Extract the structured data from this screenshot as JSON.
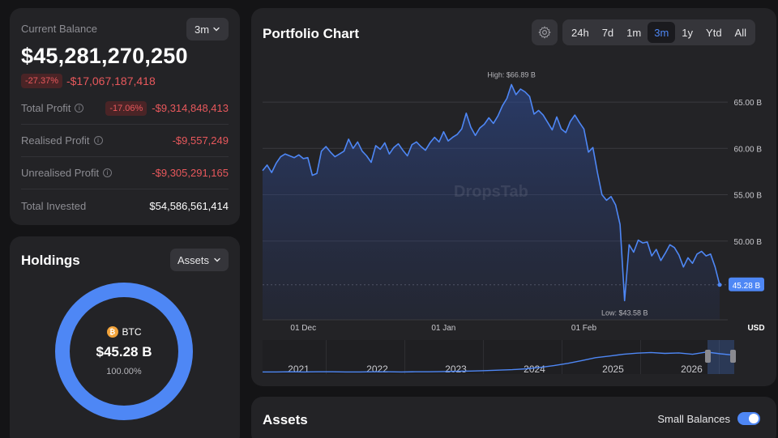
{
  "balance": {
    "label": "Current Balance",
    "period": "3m",
    "value": "$45,281,270,250",
    "change_pct": "-27.37%",
    "change_abs": "-$17,067,187,418",
    "rows": [
      {
        "label": "Total Profit",
        "badge": "-17.06%",
        "value": "-$9,314,848,413"
      },
      {
        "label": "Realised Profit",
        "value": "-$9,557,249"
      },
      {
        "label": "Unrealised Profit",
        "value": "-$9,305,291,165"
      },
      {
        "label": "Total Invested",
        "value": "$54,586,561,414"
      }
    ]
  },
  "holdings": {
    "title": "Holdings",
    "filter": "Assets",
    "coin": "BTC",
    "value": "$45.28 B",
    "share": "100.00%",
    "share_fraction": 1.0,
    "ring_color": "#4e87f5"
  },
  "chart": {
    "title": "Portfolio Chart",
    "ranges": [
      "24h",
      "7d",
      "1m",
      "3m",
      "1y",
      "Ytd",
      "All"
    ],
    "active_range": "3m",
    "watermark": "DropsTab",
    "high_label": "High: $66.89 B",
    "low_label": "Low: $43.58 B",
    "current_label": "45.28 B",
    "currency": "USD",
    "accent": "#4e87f5"
  },
  "chart_data": {
    "type": "area",
    "y_unit": "B USD",
    "y_ticks": [
      65,
      60,
      55,
      50
    ],
    "ytick_labels": [
      "65.00 B",
      "60.00 B",
      "55.00 B",
      "50.00 B"
    ],
    "ylim": [
      45.0,
      68.5
    ],
    "x_ticks": [
      "01 Dec",
      "01 Jan",
      "01 Feb"
    ],
    "x_tick_pos": [
      9,
      40,
      71
    ],
    "values": [
      57.6,
      58.2,
      57.4,
      58.4,
      59.1,
      59.4,
      59.2,
      59.0,
      59.3,
      58.9,
      59.0,
      57.1,
      57.3,
      59.7,
      60.2,
      59.6,
      59.1,
      59.4,
      59.7,
      61.0,
      60.0,
      60.7,
      59.7,
      59.2,
      58.5,
      60.3,
      59.9,
      60.6,
      59.4,
      60.1,
      60.5,
      59.8,
      59.2,
      60.4,
      60.7,
      60.2,
      59.8,
      60.6,
      61.2,
      60.7,
      61.8,
      60.8,
      61.2,
      61.5,
      62.1,
      63.8,
      62.3,
      61.4,
      62.2,
      62.6,
      63.3,
      62.7,
      63.5,
      64.6,
      65.4,
      66.89,
      65.8,
      66.4,
      66.1,
      65.6,
      63.7,
      64.1,
      63.6,
      62.8,
      62.0,
      63.4,
      62.1,
      61.7,
      62.9,
      63.6,
      62.8,
      62.1,
      59.6,
      60.1,
      57.4,
      55.0,
      54.4,
      54.8,
      53.9,
      51.8,
      43.58,
      49.6,
      48.8,
      50.1,
      49.8,
      49.9,
      48.4,
      49.1,
      47.9,
      48.7,
      49.6,
      49.3,
      48.5,
      47.2,
      48.2,
      47.6,
      48.6,
      48.9,
      48.4,
      48.6,
      47.2,
      45.28
    ],
    "high": 66.89,
    "low": 43.58,
    "current": 45.28,
    "navigator": {
      "years": [
        "2021",
        "2022",
        "2023",
        "2024",
        "2025",
        "2026"
      ],
      "values": [
        0.02,
        0.02,
        0.03,
        0.02,
        0.03,
        0.03,
        0.02,
        0.02,
        0.03,
        0.03,
        0.02,
        0.03,
        0.03,
        0.04,
        0.05,
        0.06,
        0.08,
        0.1,
        0.12,
        0.16,
        0.22,
        0.3,
        0.4,
        0.52,
        0.65,
        0.72,
        0.8,
        0.85,
        0.88,
        0.84,
        0.86,
        0.8,
        0.9,
        0.82,
        0.76
      ]
    }
  },
  "assets": {
    "title": "Assets",
    "toggle_label": "Small Balances",
    "toggle_on": true
  }
}
